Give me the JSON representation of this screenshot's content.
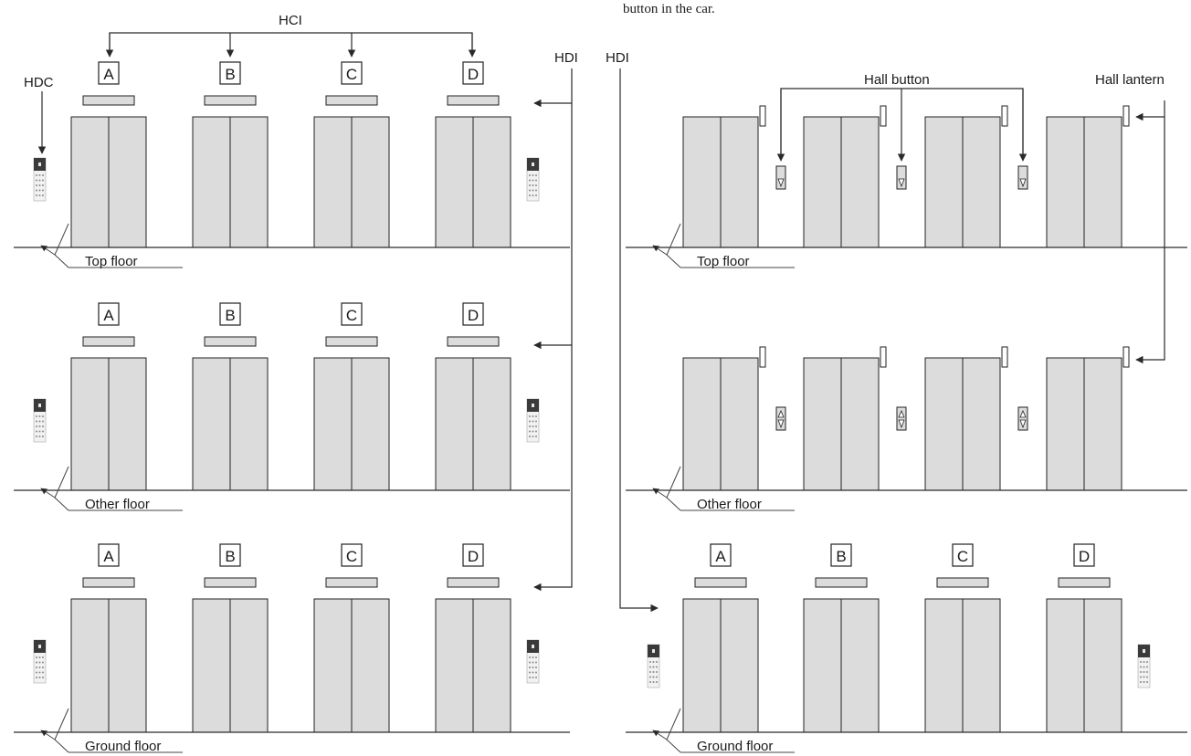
{
  "caption_fragment": "button in the car.",
  "labels": {
    "hci": "HCI",
    "hdc": "HDC",
    "hdi_left": "HDI",
    "hdi_right": "HDI",
    "hall_button": "Hall button",
    "hall_lantern": "Hall lantern"
  },
  "car_letters": [
    "A",
    "B",
    "C",
    "D"
  ],
  "left_panel": {
    "floors": [
      {
        "name": "Top floor"
      },
      {
        "name": "Other floor"
      },
      {
        "name": "Ground floor"
      }
    ]
  },
  "right_panel": {
    "floors": [
      {
        "name": "Top floor",
        "hall_buttons": "down"
      },
      {
        "name": "Other floor",
        "hall_buttons": "up-down"
      },
      {
        "name": "Ground floor"
      }
    ]
  },
  "icons": [
    "hall-destination-keypad-icon",
    "hall-button-icon",
    "hall-lantern-icon",
    "arrow-icon"
  ],
  "colors": {
    "door": "#dcdcdc",
    "line": "#2a2a2a",
    "keypad_top": "#3a3a3a"
  }
}
